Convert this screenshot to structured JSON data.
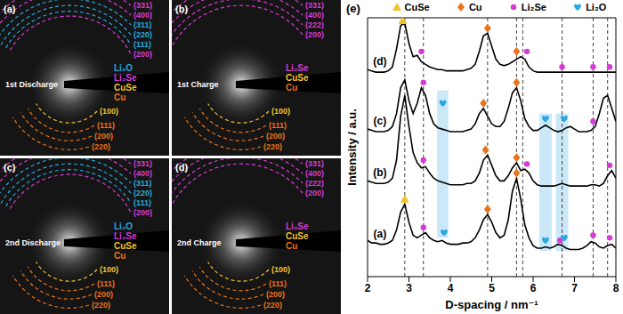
{
  "diffraction_panels": [
    {
      "label": "(a)",
      "title": "1st Discharge",
      "upper_rings": [
        {
          "text": "(331)",
          "phase": "Li₂Se"
        },
        {
          "text": "(400)",
          "phase": "Li₂Se"
        },
        {
          "text": "(311)",
          "phase": "Li₂O"
        },
        {
          "text": "(220)",
          "phase": "Li₂O"
        },
        {
          "text": "(111)",
          "phase": "Li₂O"
        },
        {
          "text": "(200)",
          "phase": "Li₂Se"
        }
      ],
      "phases": [
        "Li₂O",
        "Li₂Se",
        "CuSe",
        "Cu"
      ],
      "lower_rings": [
        {
          "text": "(100)",
          "phase": "CuSe"
        },
        {
          "text": "(111)",
          "phase": "Cu"
        },
        {
          "text": "(200)",
          "phase": "Cu"
        },
        {
          "text": "(220)",
          "phase": "Cu"
        }
      ]
    },
    {
      "label": "(b)",
      "title": "1st Charge",
      "upper_rings": [
        {
          "text": "(331)",
          "phase": "Li₂Se"
        },
        {
          "text": "(400)",
          "phase": "Li₂Se"
        },
        {
          "text": "(222)",
          "phase": "Li₂Se"
        },
        {
          "text": "(200)",
          "phase": "Li₂Se"
        }
      ],
      "phases": [
        "Li₂Se",
        "CuSe",
        "Cu"
      ],
      "lower_rings": [
        {
          "text": "(100)",
          "phase": "CuSe"
        },
        {
          "text": "(111)",
          "phase": "Cu"
        },
        {
          "text": "(200)",
          "phase": "Cu"
        },
        {
          "text": "(220)",
          "phase": "Cu"
        }
      ]
    },
    {
      "label": "(c)",
      "title": "2nd Discharge",
      "upper_rings": [
        {
          "text": "(331)",
          "phase": "Li₂Se"
        },
        {
          "text": "(400)",
          "phase": "Li₂Se"
        },
        {
          "text": "(311)",
          "phase": "Li₂O"
        },
        {
          "text": "(220)",
          "phase": "Li₂O"
        },
        {
          "text": "(111)",
          "phase": "Li₂O"
        },
        {
          "text": "(200)",
          "phase": "Li₂Se"
        }
      ],
      "phases": [
        "Li₂O",
        "Li₂Se",
        "CuSe",
        "Cu"
      ],
      "lower_rings": [
        {
          "text": "(100)",
          "phase": "CuSe"
        },
        {
          "text": "(111)",
          "phase": "Cu"
        },
        {
          "text": "(200)",
          "phase": "Cu"
        },
        {
          "text": "(220)",
          "phase": "Cu"
        }
      ]
    },
    {
      "label": "(d)",
      "title": "2nd Charge",
      "upper_rings": [
        {
          "text": "(331)",
          "phase": "Li₂Se"
        },
        {
          "text": "(400)",
          "phase": "Li₂Se"
        },
        {
          "text": "(222)",
          "phase": "Li₂Se"
        },
        {
          "text": "(200)",
          "phase": "Li₂Se"
        }
      ],
      "phases": [
        "Li₂Se",
        "CuSe",
        "Cu"
      ],
      "lower_rings": [
        {
          "text": "(100)",
          "phase": "CuSe"
        },
        {
          "text": "(111)",
          "phase": "Cu"
        },
        {
          "text": "(200)",
          "phase": "Cu"
        },
        {
          "text": "(220)",
          "phase": "Cu"
        }
      ]
    }
  ],
  "chart_data": {
    "type": "line",
    "panel_label": "(e)",
    "x_label": "D-spacing / nm⁻¹",
    "y_label": "Intensity / a.u.",
    "x": [
      2.0,
      2.1,
      2.2,
      2.3,
      2.4,
      2.5,
      2.6,
      2.7,
      2.8,
      2.9,
      3.0,
      3.1,
      3.2,
      3.3,
      3.4,
      3.5,
      3.6,
      3.7,
      3.8,
      3.9,
      4.0,
      4.1,
      4.2,
      4.3,
      4.4,
      4.5,
      4.6,
      4.7,
      4.8,
      4.9,
      5.0,
      5.1,
      5.2,
      5.3,
      5.4,
      5.5,
      5.6,
      5.7,
      5.8,
      5.9,
      6.0,
      6.1,
      6.2,
      6.3,
      6.4,
      6.5,
      6.6,
      6.7,
      6.8,
      6.9,
      7.0,
      7.1,
      7.2,
      7.3,
      7.4,
      7.5,
      7.6,
      7.7,
      7.8,
      7.9,
      8.0
    ],
    "series": [
      {
        "name": "(a)",
        "color": "#000000",
        "values": [
          14,
          13,
          13,
          12.5,
          12.5,
          13,
          14,
          18,
          25,
          28,
          21,
          16,
          15,
          16,
          17,
          15,
          14,
          13.5,
          14,
          13,
          12.5,
          12.5,
          12.5,
          13,
          13,
          13.5,
          15,
          18,
          22,
          24,
          21,
          17,
          15,
          16,
          22,
          33,
          38,
          30,
          20,
          15,
          12,
          11,
          11,
          11.5,
          11,
          11.5,
          12.5,
          12,
          11,
          10.5,
          10.5,
          10.5,
          11,
          12,
          13.5,
          13,
          11.5,
          11,
          12,
          12.5,
          11
        ]
      },
      {
        "name": "(b)",
        "color": "#000000",
        "values": [
          37,
          36.5,
          36,
          36,
          36,
          36.5,
          38,
          45,
          62,
          70,
          58,
          48,
          44,
          42,
          42.5,
          40,
          38,
          37,
          36.5,
          36,
          35.5,
          35.5,
          35.5,
          35.5,
          36,
          36,
          37,
          40,
          45,
          47,
          43,
          39,
          37,
          37,
          39,
          42,
          44,
          41,
          41.5,
          40,
          37,
          35.5,
          35,
          35,
          35,
          35,
          35.5,
          36,
          35.5,
          35,
          35,
          35,
          35,
          35,
          35.5,
          35.5,
          35,
          36,
          39,
          41,
          38
        ]
      },
      {
        "name": "(c)",
        "color": "#000000",
        "values": [
          57,
          56.5,
          56,
          56,
          56,
          56.5,
          58,
          63,
          73,
          76,
          68,
          63,
          67,
          73,
          70,
          63,
          59,
          57.5,
          57,
          56.5,
          56,
          56,
          56,
          56,
          56.5,
          57,
          59,
          63,
          65,
          62,
          59,
          58,
          58,
          60,
          65,
          71,
          73,
          68,
          61,
          58,
          56.5,
          56.5,
          57.5,
          58.5,
          57.5,
          56.5,
          56,
          56.5,
          57.5,
          58,
          57,
          56,
          56,
          56,
          56.5,
          58,
          63,
          69,
          70,
          65,
          60
        ]
      },
      {
        "name": "(d)",
        "color": "#000000",
        "values": [
          80,
          79.5,
          79,
          79,
          79,
          79.5,
          81,
          88,
          97,
          98,
          90,
          85,
          85.5,
          83,
          82,
          81,
          80.5,
          80,
          80,
          79.5,
          79.5,
          79.5,
          79.5,
          79.5,
          80,
          80.5,
          82,
          87,
          93,
          94,
          89,
          84,
          82,
          81.5,
          82,
          83,
          84,
          85,
          84,
          81,
          79.5,
          79,
          79,
          79,
          79,
          79,
          79,
          79,
          79,
          79,
          79,
          79,
          79,
          79,
          79,
          79,
          79,
          79,
          79,
          79,
          79
        ]
      }
    ],
    "xlim": [
      2,
      8
    ],
    "xticks": [
      2,
      3,
      4,
      5,
      6,
      7,
      8
    ],
    "ylim": [
      0,
      100
    ],
    "yticks": [],
    "tick_labels": "x",
    "legend": "top",
    "phases": [
      {
        "name": "CuSe",
        "color": "#f2c230",
        "marker": "triangle"
      },
      {
        "name": "Cu",
        "color": "#e8731a",
        "marker": "diamond"
      },
      {
        "name": "Li₂Se",
        "color": "#d63bd6",
        "marker": "circle"
      },
      {
        "name": "Li₂O",
        "color": "#2aa7df",
        "marker": "heart"
      }
    ],
    "phase_markers": [
      {
        "phase": "CuSe",
        "x": 2.85,
        "y": 99
      },
      {
        "phase": "Li₂Se",
        "x": 3.3,
        "y": 87
      },
      {
        "phase": "Cu",
        "x": 4.9,
        "y": 96
      },
      {
        "phase": "Cu",
        "x": 5.6,
        "y": 87
      },
      {
        "phase": "Li₂Se",
        "x": 5.85,
        "y": 87
      },
      {
        "phase": "Li₂Se",
        "x": 6.7,
        "y": 81
      },
      {
        "phase": "Li₂Se",
        "x": 7.45,
        "y": 81
      },
      {
        "phase": "Li₂Se",
        "x": 7.85,
        "y": 81
      },
      {
        "phase": "Li₂Se",
        "x": 3.35,
        "y": 75
      },
      {
        "phase": "Li₂O",
        "x": 3.82,
        "y": 67
      },
      {
        "phase": "Cu",
        "x": 4.8,
        "y": 67
      },
      {
        "phase": "Cu",
        "x": 5.6,
        "y": 75
      },
      {
        "phase": "Li₂O",
        "x": 6.3,
        "y": 61
      },
      {
        "phase": "Li₂O",
        "x": 6.75,
        "y": 61
      },
      {
        "phase": "Li₂Se",
        "x": 7.45,
        "y": 60
      },
      {
        "phase": "Li₂Se",
        "x": 3.35,
        "y": 45
      },
      {
        "phase": "Cu",
        "x": 4.85,
        "y": 49
      },
      {
        "phase": "Cu",
        "x": 5.6,
        "y": 46
      },
      {
        "phase": "Li₂Se",
        "x": 5.85,
        "y": 43.5
      },
      {
        "phase": "Li₂Se",
        "x": 7.85,
        "y": 43
      },
      {
        "phase": "CuSe",
        "x": 2.9,
        "y": 30
      },
      {
        "phase": "Li₂Se",
        "x": 3.35,
        "y": 19
      },
      {
        "phase": "Li₂O",
        "x": 3.85,
        "y": 17
      },
      {
        "phase": "Cu",
        "x": 4.9,
        "y": 26
      },
      {
        "phase": "Cu",
        "x": 5.6,
        "y": 40
      },
      {
        "phase": "Li₂O",
        "x": 6.3,
        "y": 14
      },
      {
        "phase": "Li₂Se",
        "x": 6.65,
        "y": 14
      },
      {
        "phase": "Li₂O",
        "x": 6.75,
        "y": 15
      },
      {
        "phase": "Li₂Se",
        "x": 7.45,
        "y": 16
      },
      {
        "phase": "Li₂Se",
        "x": 7.85,
        "y": 15
      }
    ],
    "reference_lines": [
      2.9,
      3.35,
      4.9,
      5.6,
      5.75,
      6.7,
      7.45,
      7.8
    ],
    "highlight_regions": [
      {
        "x": [
          3.68,
          3.95
        ],
        "y": [
          15,
          72
        ]
      },
      {
        "x": [
          6.15,
          6.45
        ],
        "y": [
          10,
          63
        ]
      },
      {
        "x": [
          6.55,
          6.85
        ],
        "y": [
          10,
          63
        ]
      }
    ]
  }
}
